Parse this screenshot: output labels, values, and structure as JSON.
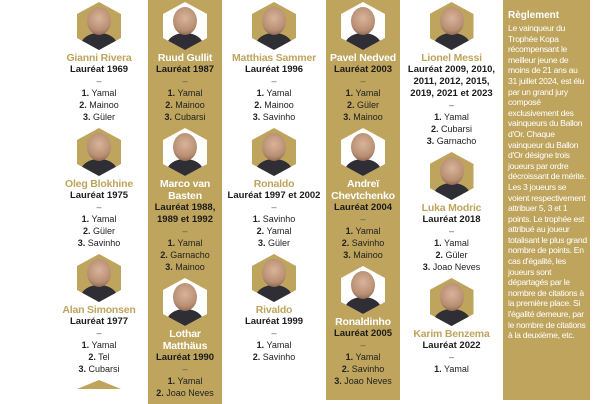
{
  "accent_color": "#bea45c",
  "columns": [
    {
      "style": "white",
      "cards": [
        {
          "name": "Gianni Rivera",
          "laureat": "Lauréat 1969",
          "ranks": [
            {
              "n": "1.",
              "p": "Yamal"
            },
            {
              "n": "2.",
              "p": "Mainoo"
            },
            {
              "n": "3.",
              "p": "Güler"
            }
          ]
        },
        {
          "name": "Oleg Blokhine",
          "laureat": "Lauréat 1975",
          "ranks": [
            {
              "n": "1.",
              "p": "Yamal"
            },
            {
              "n": "2.",
              "p": "Güler"
            },
            {
              "n": "3.",
              "p": "Savinho"
            }
          ]
        },
        {
          "name": "Alan Simonsen",
          "laureat": "Lauréat 1977",
          "ranks": [
            {
              "n": "1.",
              "p": "Yamal"
            },
            {
              "n": "2.",
              "p": "Tel"
            },
            {
              "n": "3.",
              "p": "Cubarsi"
            }
          ]
        },
        {
          "name": "",
          "laureat": "",
          "ranks": []
        }
      ]
    },
    {
      "style": "gold",
      "cards": [
        {
          "name": "Ruud Gullit",
          "laureat": "Lauréat 1987",
          "ranks": [
            {
              "n": "1.",
              "p": "Yamal"
            },
            {
              "n": "2.",
              "p": "Mainoo"
            },
            {
              "n": "3.",
              "p": "Cubarsi"
            }
          ]
        },
        {
          "name": "Marco van Basten",
          "laureat": "Lauréat 1988, 1989 et 1992",
          "ranks": [
            {
              "n": "1.",
              "p": "Yamal"
            },
            {
              "n": "2.",
              "p": "Garnacho"
            },
            {
              "n": "3.",
              "p": "Mainoo"
            }
          ]
        },
        {
          "name": "Lothar Matthäus",
          "laureat": "Lauréat 1990",
          "ranks": [
            {
              "n": "1.",
              "p": "Yamal"
            },
            {
              "n": "2.",
              "p": "Joao Neves"
            }
          ]
        }
      ]
    },
    {
      "style": "white",
      "cards": [
        {
          "name": "Matthias Sammer",
          "laureat": "Lauréat 1996",
          "ranks": [
            {
              "n": "1.",
              "p": "Yamal"
            },
            {
              "n": "2.",
              "p": "Mainoo"
            },
            {
              "n": "3.",
              "p": "Savinho"
            }
          ]
        },
        {
          "name": "Ronaldo",
          "laureat": "Lauréat 1997 et 2002",
          "ranks": [
            {
              "n": "1.",
              "p": "Savinho"
            },
            {
              "n": "2.",
              "p": "Yamal"
            },
            {
              "n": "3.",
              "p": "Güler"
            }
          ]
        },
        {
          "name": "Rivaldo",
          "laureat": "Lauréat 1999",
          "ranks": [
            {
              "n": "1.",
              "p": "Yamal"
            },
            {
              "n": "2.",
              "p": "Savinho"
            }
          ]
        }
      ]
    },
    {
      "style": "gold",
      "cards": [
        {
          "name": "Pavel Nedved",
          "laureat": "Lauréat 2003",
          "ranks": [
            {
              "n": "1.",
              "p": "Yamal"
            },
            {
              "n": "2.",
              "p": "Güler"
            },
            {
              "n": "3.",
              "p": "Mainoo"
            }
          ]
        },
        {
          "name": "Andreï Chevtchenko",
          "laureat": "Lauréat 2004",
          "ranks": [
            {
              "n": "1.",
              "p": "Yamal"
            },
            {
              "n": "2.",
              "p": "Savinho"
            },
            {
              "n": "3.",
              "p": "Mainoo"
            }
          ]
        },
        {
          "name": "Ronaldinho",
          "laureat": "Lauréat 2005",
          "ranks": [
            {
              "n": "1.",
              "p": "Yamal"
            },
            {
              "n": "2.",
              "p": "Savinho"
            },
            {
              "n": "3.",
              "p": "Joao Neves"
            }
          ]
        }
      ]
    },
    {
      "style": "white",
      "cards": [
        {
          "name": "Lionel Messi",
          "laureat": "Lauréat 2009, 2010, 2011, 2012, 2015, 2019, 2021 et 2023",
          "ranks": [
            {
              "n": "1.",
              "p": "Yamal"
            },
            {
              "n": "2.",
              "p": "Cubarsi"
            },
            {
              "n": "3.",
              "p": "Garnacho"
            }
          ]
        },
        {
          "name": "Luka Modric",
          "laureat": "Lauréat 2018",
          "ranks": [
            {
              "n": "1.",
              "p": "Yamal"
            },
            {
              "n": "2.",
              "p": "Güler"
            },
            {
              "n": "3.",
              "p": "Joao Neves"
            }
          ]
        },
        {
          "name": "Karim Benzema",
          "laureat": "Lauréat 2022",
          "ranks": [
            {
              "n": "1.",
              "p": "Yamal"
            }
          ]
        }
      ]
    }
  ],
  "rules": {
    "title": "Règlement",
    "text": "Le vainqueur du Trophée Kopa récompensant le meilleur jeune de moins de 21 ans au 31 juillet 2024, est élu par un grand jury composé exclusivement des vainqueurs du Ballon d'Or. Chaque vainqueur du Ballon d'Or désigne trois joueurs par ordre décroissant de mérite. Les 3 joueurs se voient respectivement attribuer 5, 3 et 1 points. Le trophée est attribué au joueur totalisant le plus grand nombre de points. En cas d'égalité, les joueurs sont départagés par le nombre de citations à la première place. Si l'égalité demeure, par le nombre de citations à la deuxième, etc."
  }
}
